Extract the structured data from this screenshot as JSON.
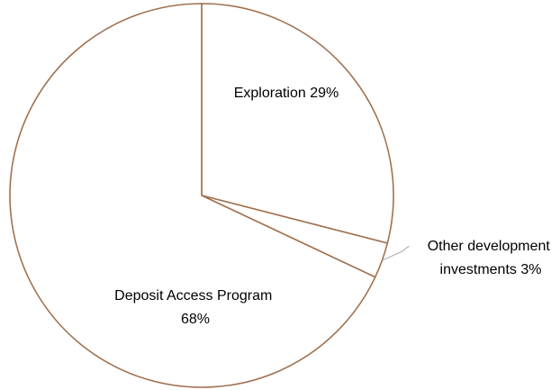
{
  "chart_data": {
    "type": "pie",
    "slices": [
      {
        "name": "Exploration",
        "value": 29,
        "label_lines": [
          "Exploration 29%"
        ]
      },
      {
        "name": "Other development investments",
        "value": 3,
        "label_lines": [
          "Other development",
          "investments 3%"
        ]
      },
      {
        "name": "Deposit Access Program",
        "value": 68,
        "label_lines": [
          "Deposit Access Program",
          "68%"
        ]
      }
    ],
    "start_angle_deg": 0,
    "direction": "clockwise",
    "colors": {
      "stroke": "#A0714F",
      "fill": "#FFFFFF",
      "leader": "#A6A6A6"
    },
    "legend": "none"
  }
}
